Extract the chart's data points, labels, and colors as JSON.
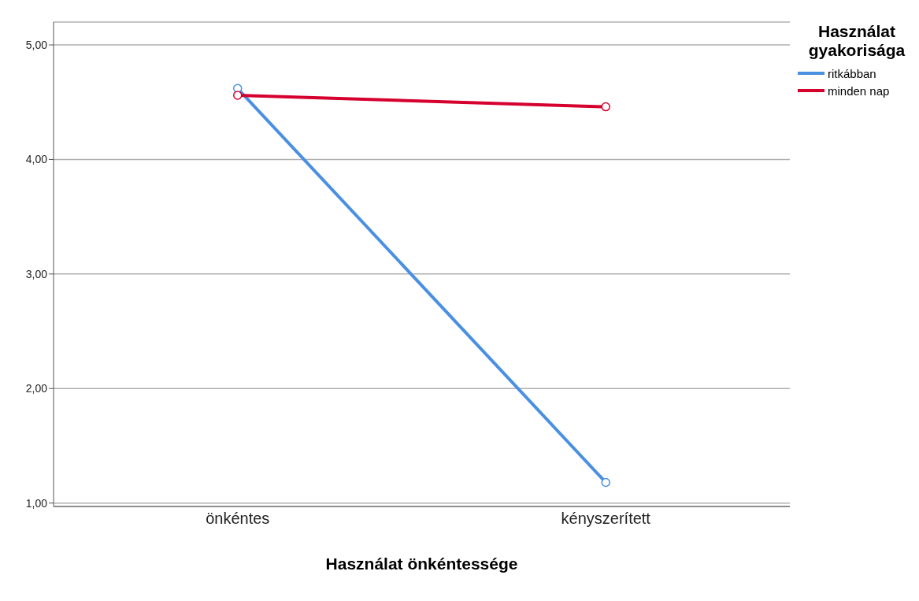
{
  "chart_data": {
    "type": "line",
    "xlabel": "Használat önkéntessége",
    "legend_title": "Használat gyakorisága",
    "categories": [
      "önkéntes",
      "kényszerített"
    ],
    "series": [
      {
        "name": "ritkábban",
        "color": "#4a90e2",
        "values": [
          4.62,
          1.18
        ]
      },
      {
        "name": "minden nap",
        "color": "#d5002e",
        "values": [
          4.56,
          4.46
        ]
      }
    ],
    "ylim": [
      0.97,
      5.2
    ],
    "yticks": [
      {
        "value": 1,
        "label": "1,00"
      },
      {
        "value": 2,
        "label": "2,00"
      },
      {
        "value": 3,
        "label": "3,00"
      },
      {
        "value": 4,
        "label": "4,00"
      },
      {
        "value": 5,
        "label": "5,00"
      }
    ],
    "grid": "y",
    "legend": "top right",
    "marker": "circle",
    "line_style": "solid"
  }
}
